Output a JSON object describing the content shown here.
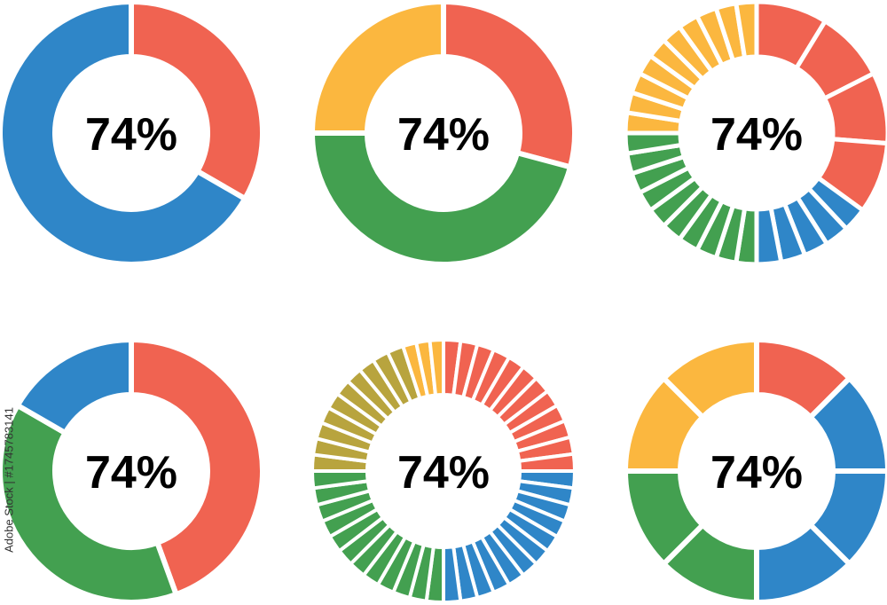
{
  "donuts": [
    {
      "label": "74%"
    },
    {
      "label": "74%"
    },
    {
      "label": "74%"
    },
    {
      "label": "74%"
    },
    {
      "label": "74%"
    },
    {
      "label": "74%"
    }
  ],
  "stock_id": "Adobe Stock | #1745783141"
}
